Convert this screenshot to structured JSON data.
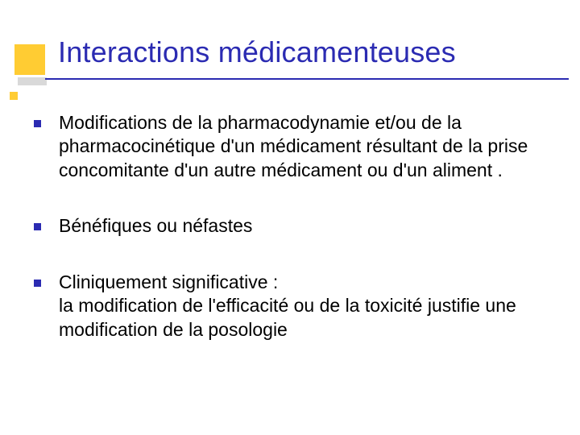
{
  "slide": {
    "title": "Interactions médicamenteuses",
    "bullets": [
      {
        "text": "Modifications de la pharmacodynamie et/ou de la pharmacocinétique d'un médicament résultant de la prise concomitante d'un autre médicament ou d'un aliment ."
      },
      {
        "text": "Bénéfiques ou néfastes"
      },
      {
        "text": "Cliniquement significative :\nla modification de l'efficacité ou de la toxicité justifie une modification de la posologie"
      }
    ]
  },
  "style": {
    "title_color": "#2b2bb2",
    "title_fontsize": 36,
    "body_color": "#000000",
    "body_fontsize": 23,
    "bullet_marker_color": "#2b2bb2",
    "accent_color": "#ffcc33",
    "background_color": "#ffffff",
    "underline_color": "#2b2bb2"
  }
}
